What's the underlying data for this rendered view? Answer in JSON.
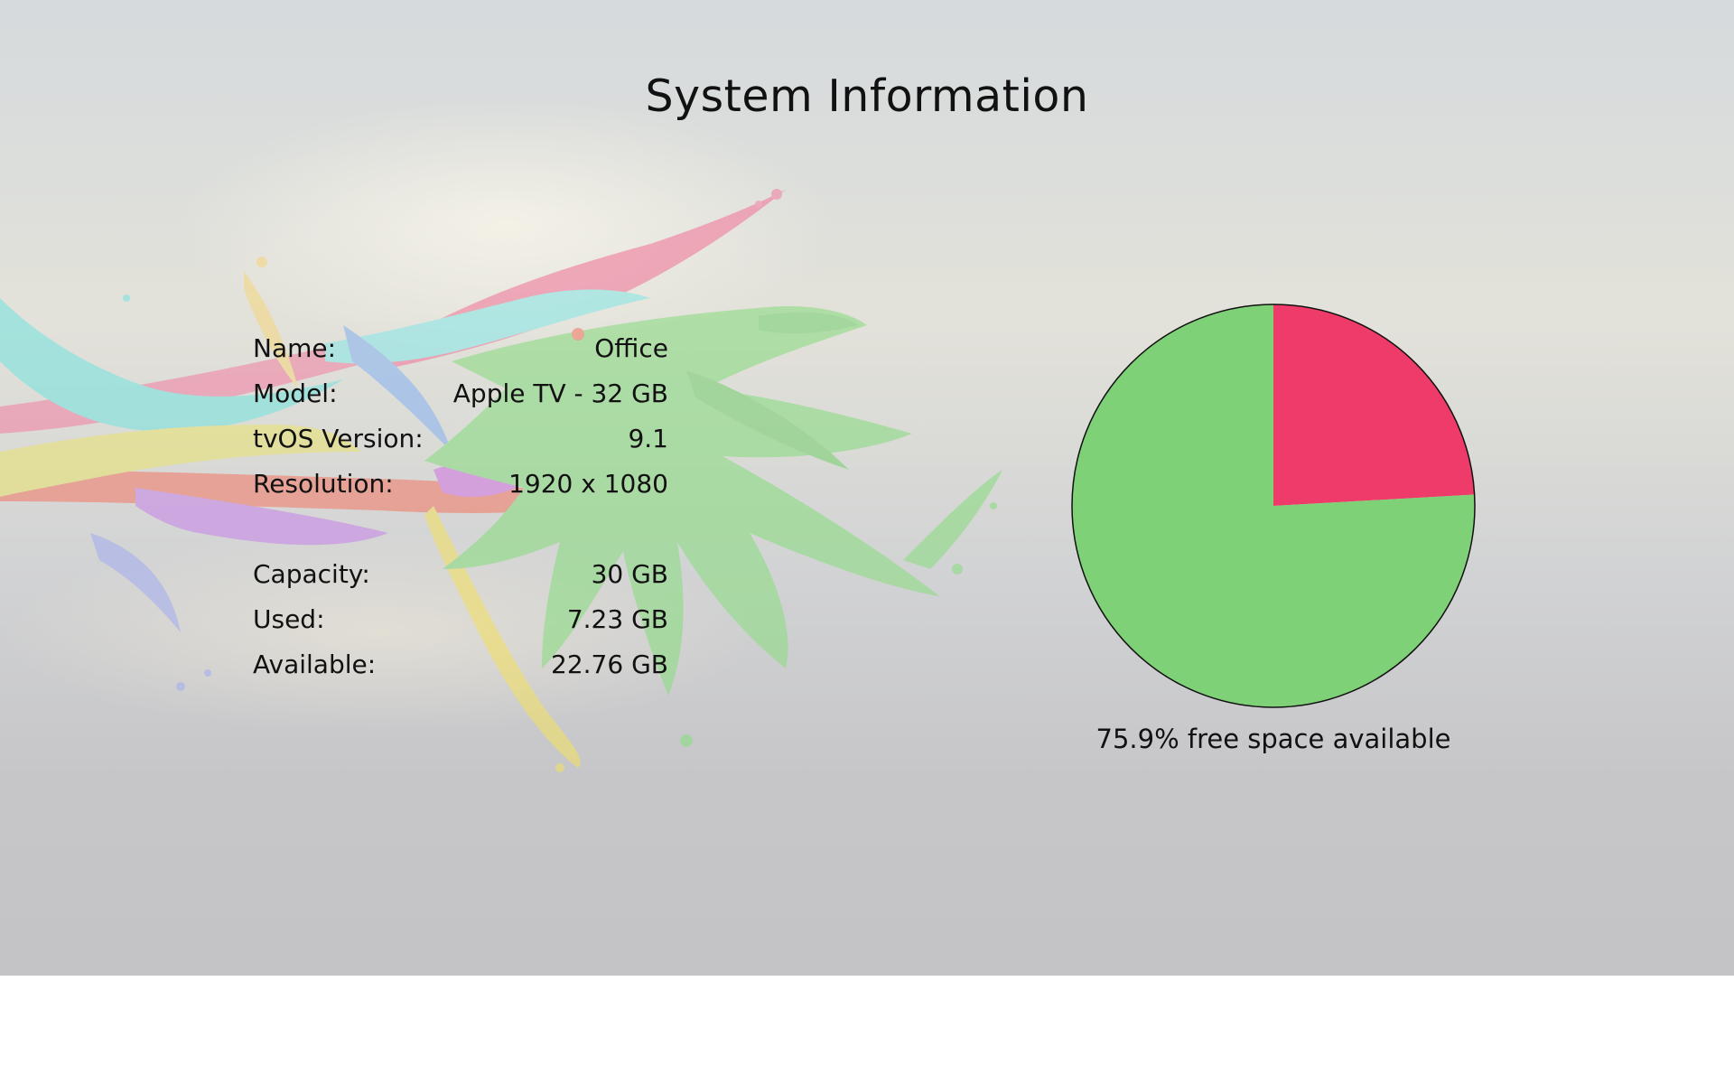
{
  "title": "System Information",
  "device": {
    "rows": [
      {
        "label": "Name:",
        "value": "Office"
      },
      {
        "label": "Model:",
        "value": "Apple TV - 32 GB"
      },
      {
        "label": "tvOS Version:",
        "value": "9.1"
      },
      {
        "label": "Resolution:",
        "value": "1920 x 1080"
      }
    ]
  },
  "storage": {
    "rows": [
      {
        "label": "Capacity:",
        "value": "30 GB"
      },
      {
        "label": "Used:",
        "value": "7.23 GB"
      },
      {
        "label": "Available:",
        "value": "22.76 GB"
      }
    ],
    "caption": "75.9% free space available"
  },
  "chart_data": {
    "type": "pie",
    "slices": [
      {
        "value": 7.23,
        "color": "#ef3b6a"
      },
      {
        "value": 22.76,
        "color": "#7fd178"
      }
    ],
    "start_angle_deg": 0,
    "direction": "clockwise"
  }
}
